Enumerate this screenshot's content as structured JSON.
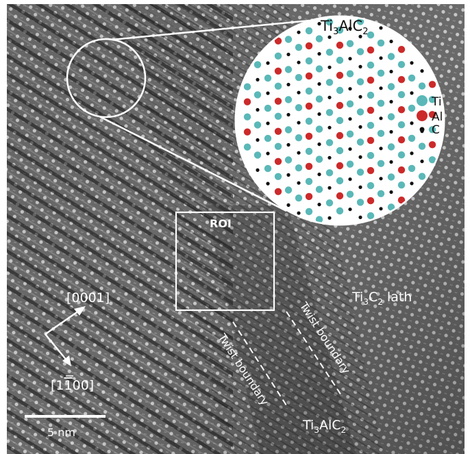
{
  "inset_title": {
    "main": "Ti",
    "sub1": "3",
    "mid": "AlC",
    "sub2": "2"
  },
  "roi_label": "ROI",
  "lath_label": {
    "main": "Ti",
    "sub1": "3",
    "mid": "C",
    "sub2": "2",
    "rest": " lath"
  },
  "bottom_phase_label": {
    "main": "Ti",
    "sub1": "3",
    "mid": "AlC",
    "sub2": "2"
  },
  "twist_boundary_1": "Twist boundary",
  "twist_boundary_2": "Twist boundary",
  "direction_0001": "[0001]",
  "direction_1100": {
    "open": "[1",
    "bar": "1",
    "close": "00]"
  },
  "scale_bar_label": "5 nm",
  "legend": [
    {
      "symbol": "Ti",
      "color": "#5bb8b8"
    },
    {
      "symbol": "Al",
      "color": "#cc2a2a"
    },
    {
      "symbol": "C",
      "color": "#111111"
    }
  ],
  "colors": {
    "ti": "#5bb8b8",
    "al": "#cc2a2a",
    "c": "#111111",
    "overlay": "#ffffff"
  }
}
